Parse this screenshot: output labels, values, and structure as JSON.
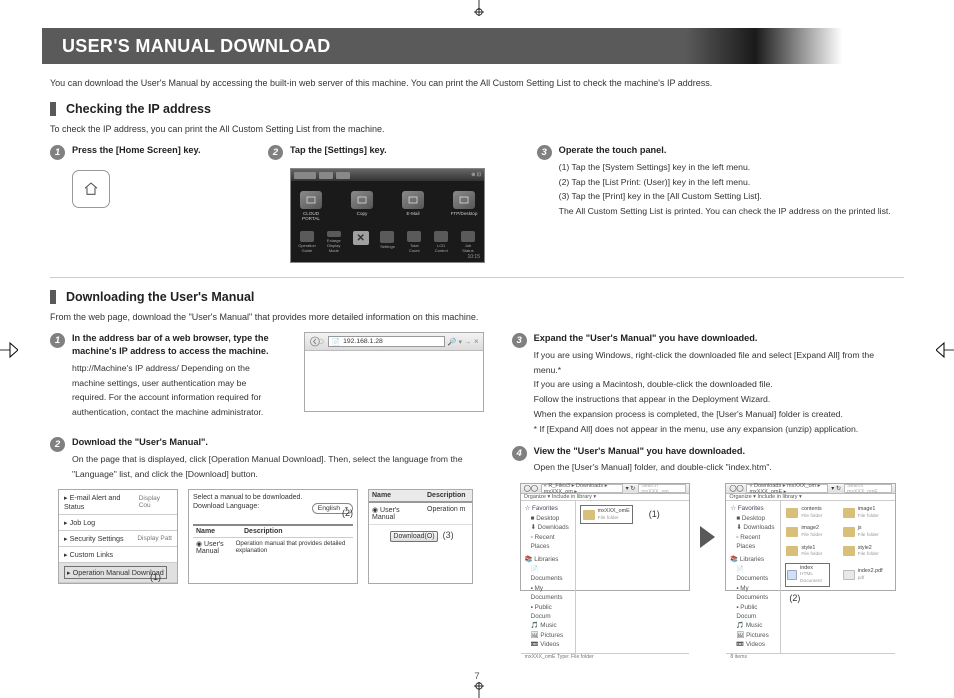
{
  "page_title": "USER'S MANUAL DOWNLOAD",
  "intro": "You can download the User's Manual by accessing the built-in web server of this machine. You can print the All Custom Setting List to check the machine's IP address.",
  "section1": {
    "heading": "Checking the IP address",
    "intro": "To check the IP address, you can print the All Custom Setting List from the machine.",
    "step1": {
      "title": "Press the [Home Screen] key."
    },
    "step2": {
      "title": "Tap the [Settings] key."
    },
    "step3": {
      "title": "Operate the touch panel.",
      "lines": [
        "(1) Tap the [System Settings] key in the left menu.",
        "(2) Tap the [List Print: (User)] key in the left menu.",
        "(3) Tap the [Print] key in the [All Custom Setting List].",
        "The All Custom Setting List is printed. You can check the IP address on the printed list."
      ]
    }
  },
  "touch_panel": {
    "top_icons": [
      "CLOUD PORTAL",
      "Copy",
      "E-Mail",
      "FTP/Desktop"
    ],
    "bottom_icons": [
      "Operation Guide",
      "Enlarge Display Mode",
      "",
      "Settings",
      "Total Count",
      "LCD Control",
      "Job Status"
    ],
    "time": "10:15"
  },
  "section2": {
    "heading": "Downloading the User's Manual",
    "intro": "From the web page, download the \"User's Manual\" that provides more detailed information on this machine.",
    "step1": {
      "title": "In the address bar of a web browser, type the machine's IP address to access the machine.",
      "body": "http://Machine's IP address/  Depending on the machine settings, user authentication may be required. For the account information required for authentication, contact the machine administrator."
    },
    "step2": {
      "title": "Download the \"User's Manual\".",
      "body": "On the page that is displayed, click [Operation Manual Download]. Then, select the language from the \"Language\" list, and click the [Download] button."
    },
    "step3": {
      "title": "Expand the \"User's Manual\" you have downloaded.",
      "lines": [
        "If you are using Windows, right-click the downloaded file and select [Expand All] from the menu.*",
        "If you are using a Macintosh, double-click the downloaded file.",
        "Follow the instructions that appear in the Deployment Wizard.",
        "When the expansion process is completed, the [User's Manual] folder is created.",
        "* If [Expand All] does not appear in the menu, use any expansion (unzip) application."
      ]
    },
    "step4": {
      "title": "View the \"User's Manual\" you have downloaded.",
      "body": "Open the [User's Manual] folder, and double-click \"index.htm\"."
    }
  },
  "browser_mock": {
    "url": "192.168.1.28",
    "search": "🔎 ▾ →",
    "close": "×"
  },
  "sidebar_mock": {
    "rows": [
      {
        "l": "▸ E-mail Alert and Status",
        "r": "Display Cou"
      },
      {
        "l": "▸ Job Log",
        "r": ""
      },
      {
        "l": "▸ Security Settings",
        "r": "Display Patt"
      },
      {
        "l": "▸ Custom Links",
        "r": ""
      },
      {
        "l": "▸ Operation Manual Download",
        "r": ""
      }
    ]
  },
  "lang_mock": {
    "line1": "Select a manual to be downloaded.",
    "line2": "Download Language:",
    "selected": "English",
    "cols": {
      "name": "Name",
      "desc": "Description"
    },
    "row": {
      "name": "◉ User's Manual",
      "desc": "Operation manual that provides detailed explanation"
    }
  },
  "dl_mock": {
    "cols": {
      "name": "Name",
      "desc": "Description"
    },
    "row": {
      "name": "◉ User's Manual",
      "desc": "Operation m"
    },
    "btn": "Download(O)"
  },
  "annotations": {
    "a1": "(1)",
    "a2": "(2)",
    "a3": "(3)"
  },
  "explorer1": {
    "path": "« R_Files3 ▸ Downloads ▸ mxXXX_om ▸",
    "search_ph": "Search mxXXX_om",
    "toolbar": "Organize ▾    Include in library ▾",
    "tree_fav": "☆ Favorites",
    "tree_items": [
      "■ Desktop",
      "⬇ Downloads",
      "▫ Recent Places"
    ],
    "tree_lib": "📚 Libraries",
    "tree_lib_items": [
      "📄 Documents",
      "▪ My Documents",
      "▪ Public Docum",
      "🎵 Music",
      "🖼 Pictures",
      "📼 Videos"
    ],
    "item": {
      "name": "mxXXX_omE",
      "sub": "File folder"
    },
    "status": "mxXXX_omE  Type: File folder"
  },
  "explorer2": {
    "path": "« Downloads ▸ mxXXX_om ▸ mxXXX_omE ▸",
    "search_ph": "Search mxXXX_omE",
    "toolbar": "Organize ▾    Include in library ▾",
    "items": [
      {
        "name": "contents",
        "sub": "File folder",
        "t": "folder"
      },
      {
        "name": "image1",
        "sub": "File folder",
        "t": "folder"
      },
      {
        "name": "image2",
        "sub": "File folder",
        "t": "folder"
      },
      {
        "name": "js",
        "sub": "File folder",
        "t": "folder"
      },
      {
        "name": "style1",
        "sub": "File folder",
        "t": "folder"
      },
      {
        "name": "style2",
        "sub": "File folder",
        "t": "folder"
      },
      {
        "name": "index",
        "sub": "HTML Document",
        "t": "html"
      },
      {
        "name": "index2.pdf",
        "sub": "pdf",
        "t": "file"
      }
    ],
    "status": "8 items"
  },
  "page_number": "7",
  "colors": {
    "banner_bg": "#5a5a5a",
    "banner_text": "#ffffff",
    "heading_border": "#595959",
    "badge_bg": "#808080",
    "text": "#333333",
    "panel_bg": "#1a1a1a"
  }
}
